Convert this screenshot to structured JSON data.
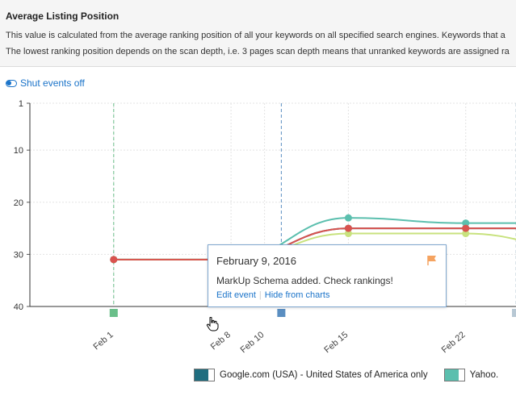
{
  "header": {
    "title": "Average Listing Position",
    "line1": "This value is calculated from the average ranking position of all your keywords on all specified search engines. Keywords that a",
    "line2": "The lowest ranking position depends on the scan depth, i.e. 3 pages scan depth means that unranked keywords are assigned ra"
  },
  "toggle": {
    "label": "Shut events off",
    "icon": "toggle-icon"
  },
  "tooltip": {
    "date": "February 9, 2016",
    "message": "MarkUp Schema added. Check rankings!",
    "edit_label": "Edit event",
    "hide_label": "Hide from charts",
    "flag_color": "#f5a360",
    "icon": "flag-icon"
  },
  "legend": [
    {
      "label": "Google.com (USA) - United States of America only",
      "color": "#1f6e80"
    },
    {
      "label": "Yahoo.",
      "color": "#5bbfae"
    }
  ],
  "chart_data": {
    "type": "line",
    "y_reversed": true,
    "ylim": [
      1,
      40
    ],
    "yticks": [
      1,
      10,
      20,
      30,
      40
    ],
    "x_tick_labels": [
      "Feb 1",
      "Feb 8",
      "Feb 10",
      "Feb 15",
      "Feb 22"
    ],
    "x_tick_days": [
      1,
      8,
      10,
      15,
      22
    ],
    "xlim": [
      -4,
      25
    ],
    "grid": true,
    "events": [
      {
        "day": 1,
        "color": "#6abf8a"
      },
      {
        "day": 11,
        "color": "#5a8ec1"
      },
      {
        "day": 25,
        "color": "#b8c8d4"
      }
    ],
    "series": [
      {
        "color": "#1f6e80",
        "x": [
          1,
          8,
          15,
          22,
          25
        ],
        "y": [
          31,
          31,
          25,
          25,
          25
        ]
      },
      {
        "color": "#5bbfae",
        "x": [
          1,
          8,
          15,
          22,
          29
        ],
        "y": [
          31,
          31,
          23,
          24,
          24
        ]
      },
      {
        "color": "#c8e27e",
        "x": [
          1,
          8,
          15,
          22,
          29
        ],
        "y": [
          31,
          31,
          26,
          26,
          29
        ]
      },
      {
        "color": "#d9534f",
        "x": [
          1,
          8,
          15,
          22,
          29
        ],
        "y": [
          31,
          31,
          25,
          25,
          25
        ]
      }
    ]
  }
}
